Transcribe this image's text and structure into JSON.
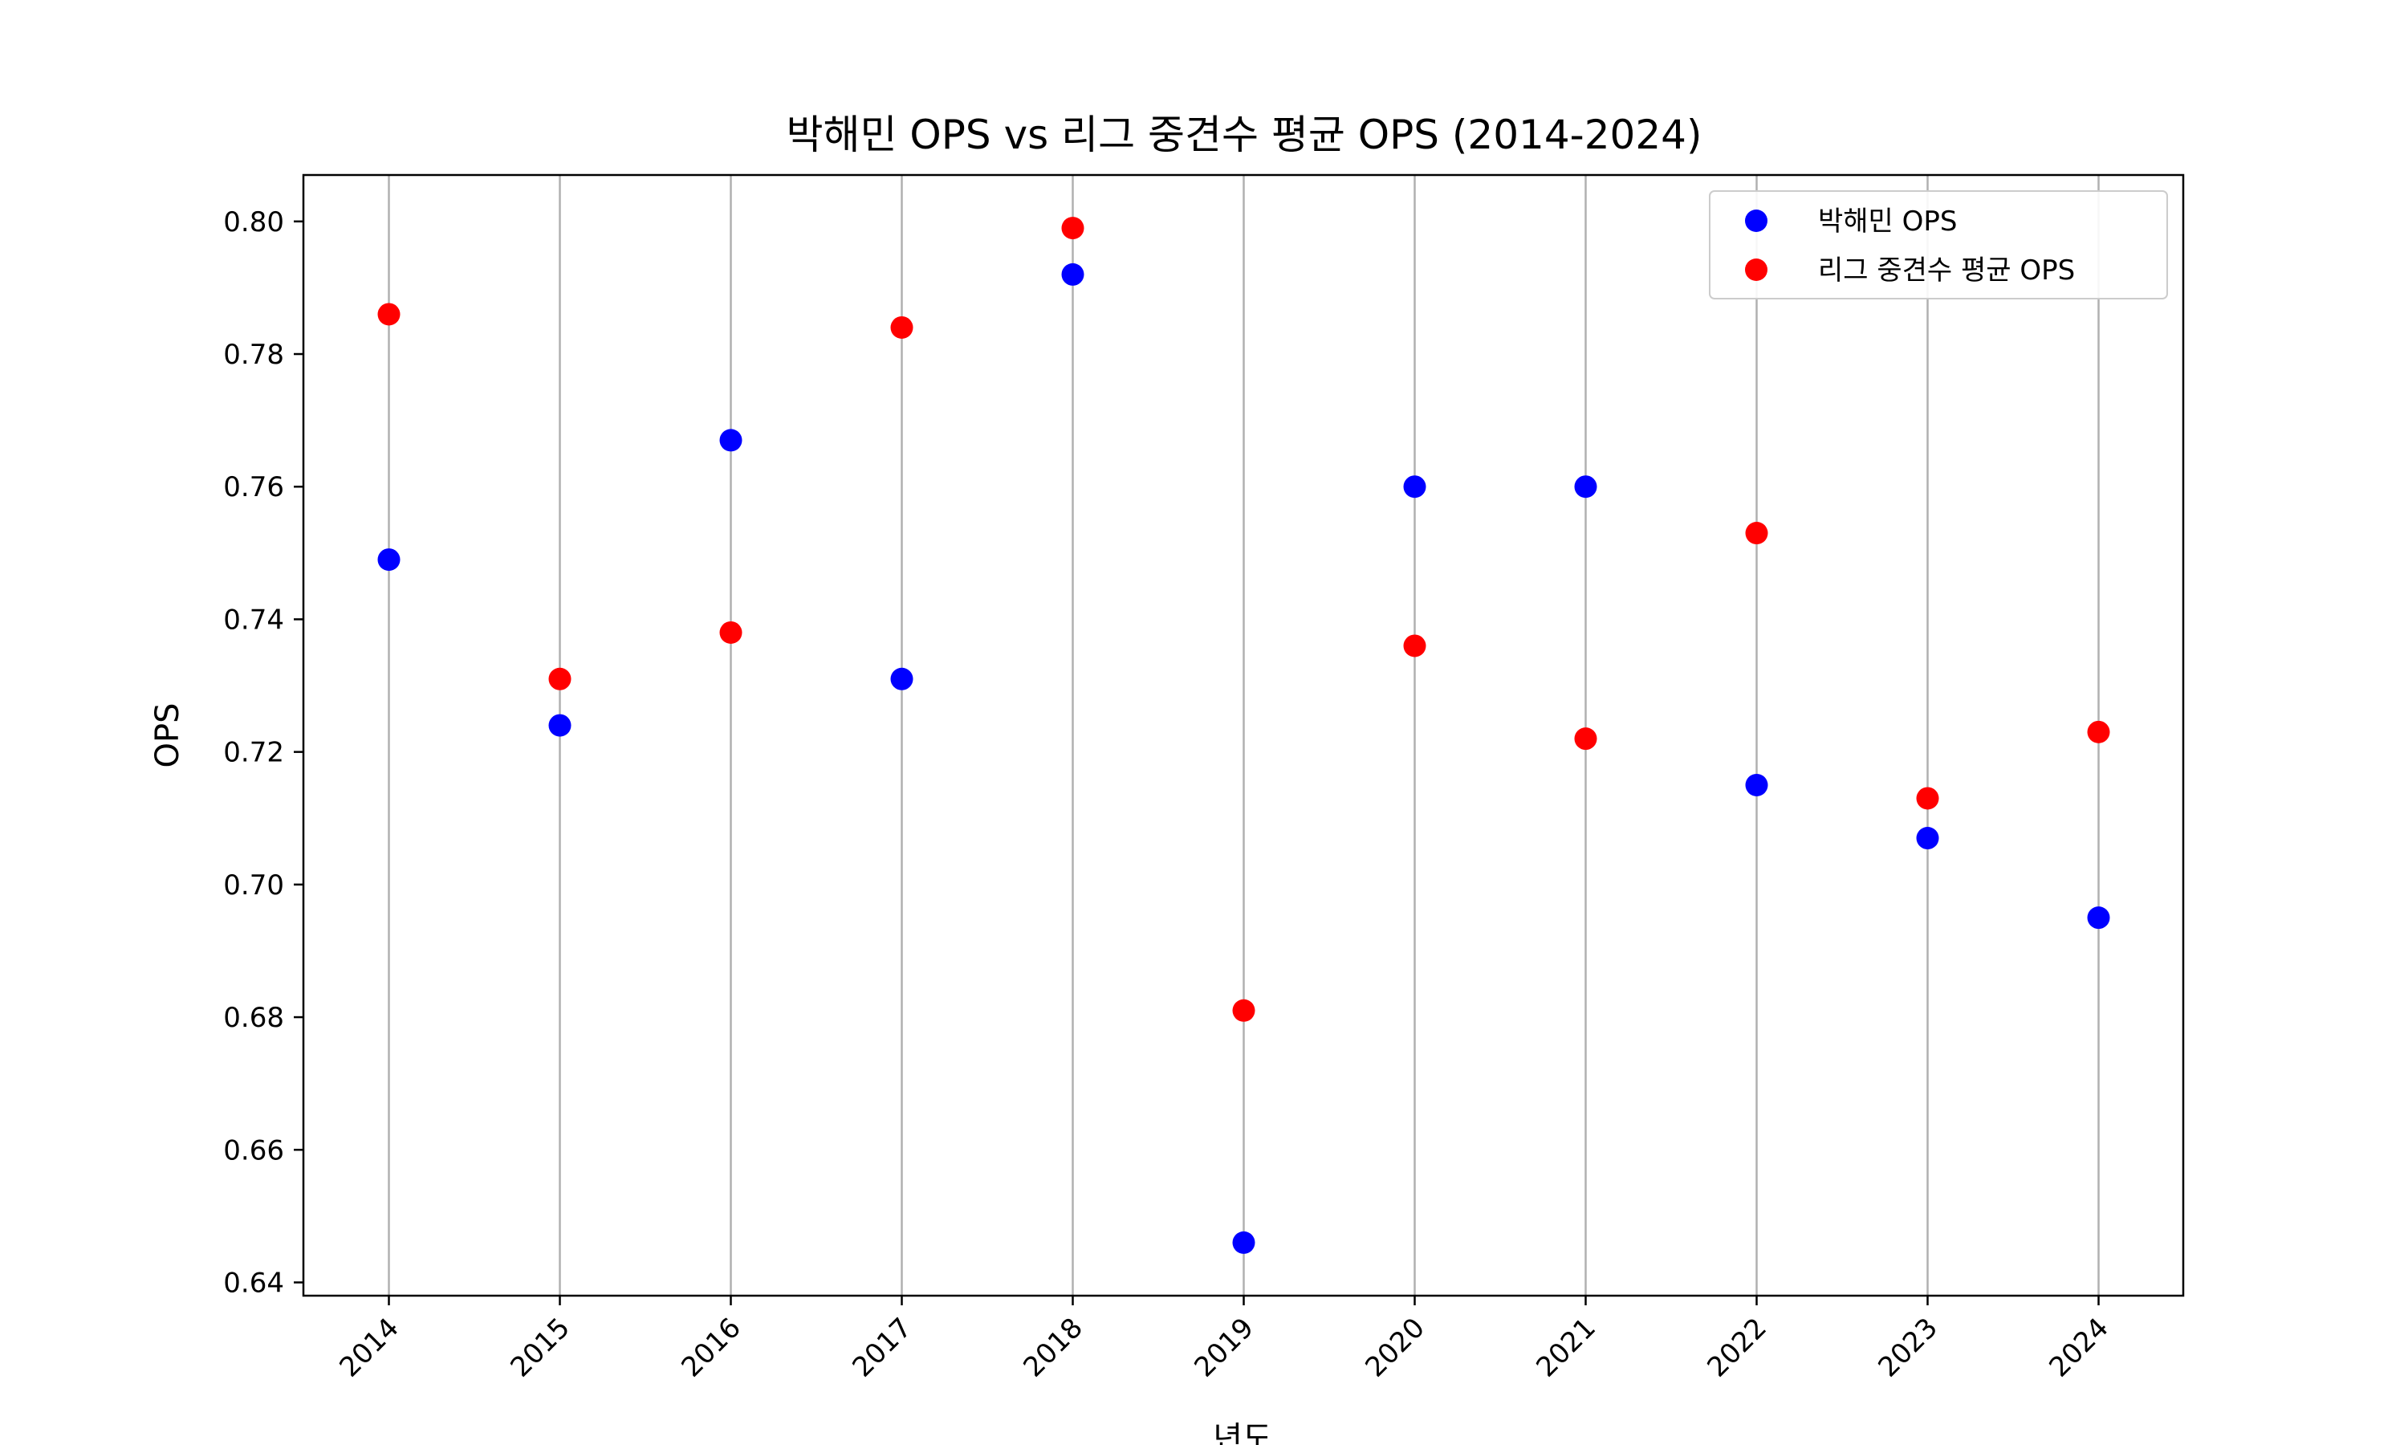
{
  "chart_data": {
    "type": "scatter",
    "title": "박해민 OPS vs 리그 중견수 평균 OPS (2014-2024)",
    "xlabel": "년도",
    "ylabel": "OPS",
    "x": [
      "2014",
      "2015",
      "2016",
      "2017",
      "2018",
      "2019",
      "2020",
      "2021",
      "2022",
      "2023",
      "2024"
    ],
    "ylim": [
      0.638,
      0.807
    ],
    "yticks": [
      "0.64",
      "0.66",
      "0.68",
      "0.70",
      "0.72",
      "0.74",
      "0.76",
      "0.78",
      "0.80"
    ],
    "grid": "vertical",
    "legend_position": "top-right",
    "series": [
      {
        "name": "박해민 OPS",
        "color": "#0000ff",
        "values": [
          0.749,
          0.724,
          0.767,
          0.731,
          0.792,
          0.646,
          0.76,
          0.76,
          0.715,
          0.707,
          0.695
        ]
      },
      {
        "name": "리그 중견수 평균 OPS",
        "color": "#ff0000",
        "values": [
          0.786,
          0.731,
          0.738,
          0.784,
          0.799,
          0.681,
          0.736,
          0.722,
          0.753,
          0.713,
          0.723
        ]
      }
    ]
  }
}
